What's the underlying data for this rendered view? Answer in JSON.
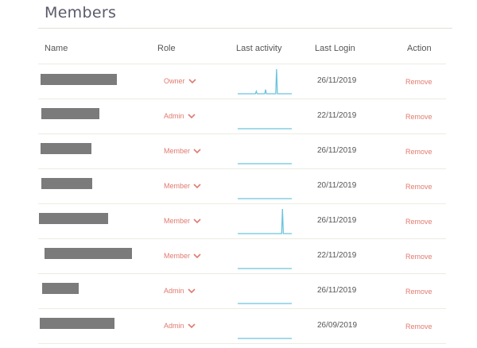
{
  "page": {
    "title": "Members"
  },
  "table": {
    "headers": {
      "name": "Name",
      "role": "Role",
      "activity": "Last activity",
      "login": "Last Login",
      "action": "Action"
    },
    "action_label": "Remove",
    "rows": [
      {
        "role": "Owner",
        "last_login": "26/11/2019",
        "activity": [
          0,
          0,
          0,
          0,
          0,
          0,
          0,
          0,
          0,
          0,
          0,
          0,
          0,
          0,
          0,
          0,
          0,
          0,
          0,
          0,
          0,
          0,
          0.1,
          0,
          0,
          0,
          0,
          0,
          0,
          0,
          0,
          0,
          0,
          0.17,
          0,
          0,
          0,
          0,
          0,
          0,
          0,
          0,
          0,
          0,
          0,
          0,
          1,
          0,
          0,
          0,
          0,
          0,
          0,
          0,
          0,
          0,
          0,
          0,
          0,
          0,
          0,
          0,
          0,
          0,
          0
        ]
      },
      {
        "role": "Admin",
        "last_login": "22/11/2019",
        "activity": [
          0,
          0,
          0,
          0,
          0,
          0,
          0,
          0,
          0,
          0,
          0,
          0,
          0,
          0,
          0,
          0,
          0,
          0,
          0,
          0,
          0,
          0,
          0,
          0,
          0,
          0,
          0,
          0,
          0,
          0,
          0,
          0,
          0,
          0,
          0,
          0,
          0,
          0,
          0,
          0,
          0,
          0,
          0,
          0,
          0,
          0,
          0,
          0,
          0,
          0,
          0,
          0,
          0,
          0,
          0,
          0,
          0,
          0,
          0,
          0,
          0,
          0,
          0,
          0,
          0
        ]
      },
      {
        "role": "Member",
        "last_login": "26/11/2019",
        "activity": [
          0,
          0,
          0,
          0,
          0,
          0,
          0,
          0,
          0,
          0,
          0,
          0,
          0,
          0,
          0,
          0,
          0,
          0,
          0,
          0,
          0,
          0,
          0,
          0,
          0,
          0,
          0,
          0,
          0,
          0,
          0,
          0,
          0,
          0,
          0,
          0,
          0,
          0,
          0,
          0,
          0,
          0,
          0,
          0,
          0,
          0,
          0,
          0,
          0,
          0,
          0,
          0,
          0,
          0,
          0,
          0,
          0,
          0,
          0,
          0,
          0,
          0,
          0,
          0,
          0
        ]
      },
      {
        "role": "Member",
        "last_login": "20/11/2019",
        "activity": [
          0,
          0,
          0,
          0,
          0,
          0,
          0,
          0,
          0,
          0,
          0,
          0,
          0,
          0,
          0,
          0,
          0,
          0,
          0,
          0,
          0,
          0,
          0,
          0,
          0,
          0,
          0,
          0,
          0,
          0,
          0,
          0,
          0,
          0,
          0,
          0,
          0,
          0,
          0,
          0,
          0,
          0,
          0,
          0,
          0,
          0,
          0,
          0,
          0,
          0,
          0,
          0,
          0,
          0,
          0,
          0,
          0,
          0,
          0,
          0,
          0,
          0,
          0,
          0,
          0
        ]
      },
      {
        "role": "Member",
        "last_login": "26/11/2019",
        "activity": [
          0,
          0,
          0,
          0,
          0,
          0,
          0,
          0,
          0,
          0,
          0,
          0,
          0,
          0,
          0,
          0,
          0,
          0,
          0,
          0,
          0,
          0,
          0,
          0,
          0,
          0,
          0,
          0,
          0,
          0,
          0,
          0,
          0,
          0,
          0,
          0,
          0,
          0,
          0,
          0,
          0,
          0,
          0,
          0,
          0,
          0,
          0,
          0,
          0,
          0,
          0,
          0,
          0,
          1,
          0,
          0,
          0,
          0,
          0,
          0,
          0,
          0,
          0,
          0,
          0
        ]
      },
      {
        "role": "Member",
        "last_login": "22/11/2019",
        "activity": [
          0,
          0,
          0,
          0,
          0,
          0,
          0,
          0,
          0,
          0,
          0,
          0,
          0,
          0,
          0,
          0,
          0,
          0,
          0,
          0,
          0,
          0,
          0,
          0,
          0,
          0,
          0,
          0,
          0,
          0,
          0,
          0,
          0,
          0,
          0,
          0,
          0,
          0,
          0,
          0,
          0,
          0,
          0,
          0,
          0,
          0,
          0,
          0,
          0,
          0,
          0,
          0,
          0,
          0,
          0,
          0,
          0,
          0,
          0,
          0,
          0,
          0,
          0,
          0,
          0
        ]
      },
      {
        "role": "Admin",
        "last_login": "26/11/2019",
        "activity": [
          0,
          0,
          0,
          0,
          0,
          0,
          0,
          0,
          0,
          0,
          0,
          0,
          0,
          0,
          0,
          0,
          0,
          0,
          0,
          0,
          0,
          0,
          0,
          0,
          0,
          0,
          0,
          0,
          0,
          0,
          0,
          0,
          0,
          0,
          0,
          0,
          0,
          0,
          0,
          0,
          0,
          0,
          0,
          0,
          0,
          0,
          0,
          0,
          0,
          0,
          0,
          0,
          0,
          0,
          0,
          0,
          0,
          0,
          0,
          0,
          0,
          0,
          0,
          0,
          0
        ]
      },
      {
        "role": "Admin",
        "last_login": "26/09/2019",
        "activity": [
          0,
          0,
          0,
          0,
          0,
          0,
          0,
          0,
          0,
          0,
          0,
          0,
          0,
          0,
          0,
          0,
          0,
          0,
          0,
          0,
          0,
          0,
          0,
          0,
          0,
          0,
          0,
          0,
          0,
          0,
          0,
          0,
          0,
          0,
          0,
          0,
          0,
          0,
          0,
          0,
          0,
          0,
          0,
          0,
          0,
          0,
          0,
          0,
          0,
          0,
          0,
          0,
          0,
          0,
          0,
          0,
          0,
          0,
          0,
          0,
          0,
          0,
          0,
          0,
          0
        ]
      }
    ]
  },
  "colors": {
    "accent": "#e17a6f",
    "sparkline": "#6cc4dc",
    "redaction": "#7b7b7b"
  }
}
